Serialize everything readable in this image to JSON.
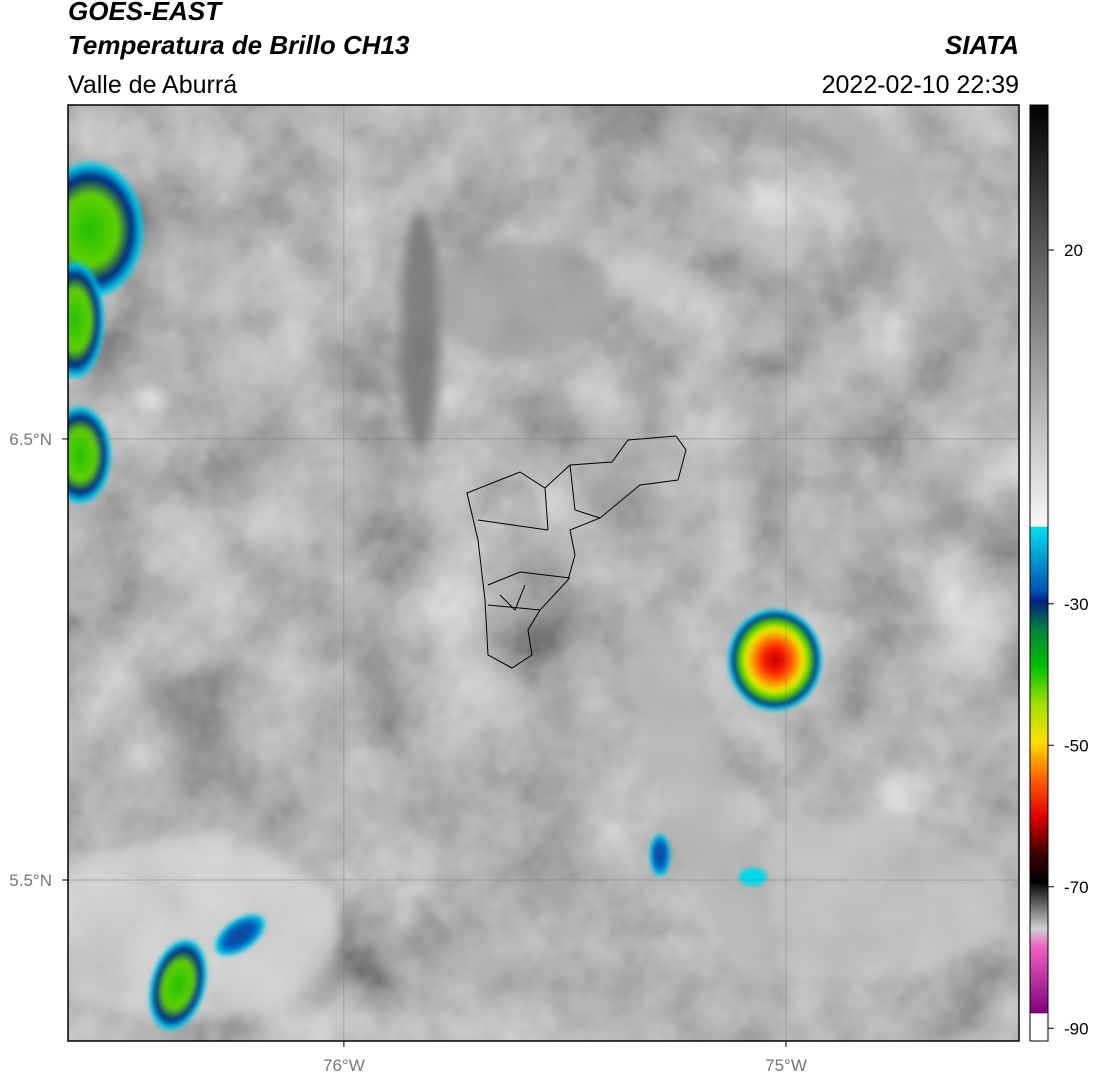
{
  "header": {
    "title": "GOES-EAST",
    "subtitle": "Temperatura de Brillo CH13",
    "region": "Valle de Aburrá",
    "source": "SIATA",
    "datetime": "2022-02-10 22:39"
  },
  "map": {
    "lon_lim": [
      -76.624,
      -74.473
    ],
    "lat_lim": [
      5.135,
      7.257
    ],
    "lon_ticks": [
      {
        "value": -76,
        "label": "76°W"
      },
      {
        "value": -75,
        "label": "75°W"
      }
    ],
    "lat_ticks": [
      {
        "value": 6.5,
        "label": "6.5°N"
      },
      {
        "value": 5.5,
        "label": "5.5°N"
      }
    ]
  },
  "colorbar": {
    "lim": [
      -91.8,
      40.5
    ],
    "ticks": [
      20,
      -30,
      -50,
      -70,
      -90
    ]
  }
}
